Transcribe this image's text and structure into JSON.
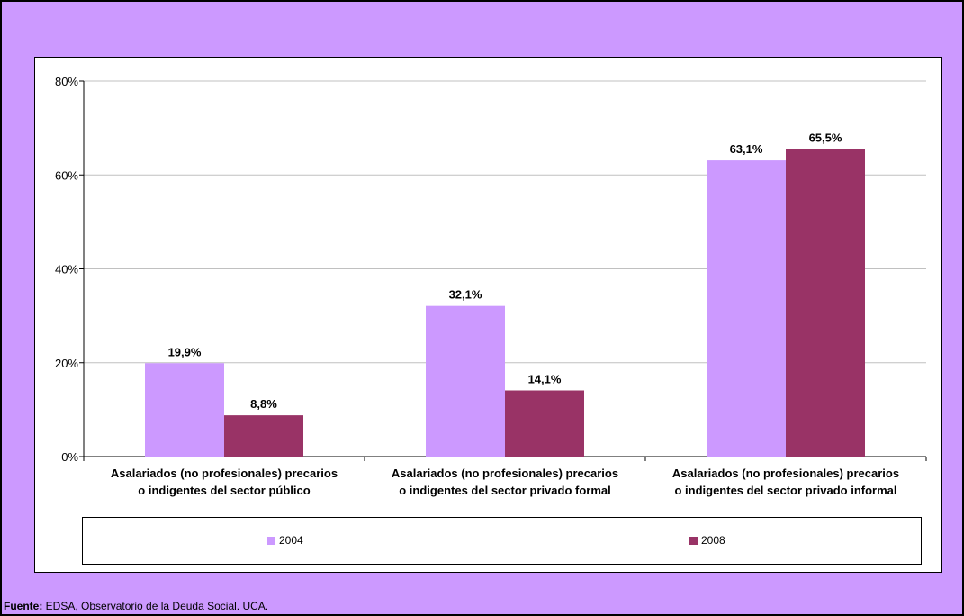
{
  "colors": {
    "background": "#cc99ff",
    "series_2004": "#cc99ff",
    "series_2008": "#993366",
    "grid": "#c0c0c0"
  },
  "footer": {
    "source_label": "Fuente:",
    "source_text": " EDSA, Observatorio de la Deuda Social. UCA."
  },
  "chart_data": {
    "type": "bar",
    "categories": [
      [
        "Asalariados (no profesionales) precarios",
        "o indigentes del sector público"
      ],
      [
        "Asalariados (no profesionales) precarios",
        "o indigentes del sector privado formal"
      ],
      [
        "Asalariados (no profesionales) precarios",
        "o indigentes del sector privado informal"
      ]
    ],
    "series": [
      {
        "name": "2004",
        "values": [
          19.9,
          32.1,
          63.1
        ],
        "labels": [
          "19,9%",
          "32,1%",
          "63,1%"
        ]
      },
      {
        "name": "2008",
        "values": [
          8.8,
          14.1,
          65.5
        ],
        "labels": [
          "8,8%",
          "14,1%",
          "65,5%"
        ]
      }
    ],
    "yticks": [
      "0%",
      "20%",
      "40%",
      "60%",
      "80%"
    ],
    "ylim": [
      0,
      80
    ],
    "grid": true,
    "legend": "bottom"
  }
}
